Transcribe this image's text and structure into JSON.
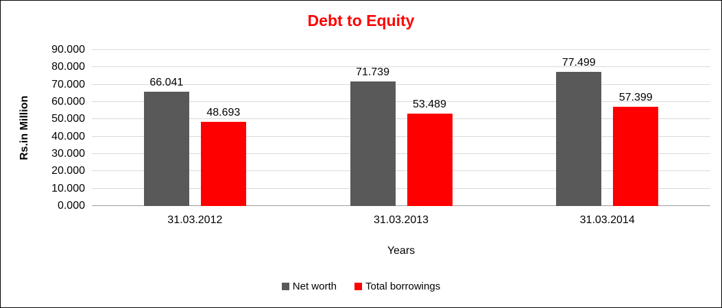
{
  "chart_data": {
    "type": "bar",
    "title": "Debt to Equity",
    "title_color": "#FF0000",
    "xlabel": "Years",
    "ylabel": "Rs.in Million",
    "categories": [
      "31.03.2012",
      "31.03.2013",
      "31.03.2014"
    ],
    "series": [
      {
        "name": "Net worth",
        "color": "#595959",
        "values": [
          66.041,
          71.739,
          77.499
        ],
        "labels": [
          "66.041",
          "71.739",
          "77.499"
        ]
      },
      {
        "name": "Total borrowings",
        "color": "#FF0000",
        "values": [
          48.693,
          53.489,
          57.399
        ],
        "labels": [
          "48.693",
          "53.489",
          "57.399"
        ]
      }
    ],
    "ylim": [
      0,
      90
    ],
    "ytick_step": 10,
    "ytick_labels": [
      "0.000",
      "10.000",
      "20.000",
      "30.000",
      "40.000",
      "50.000",
      "60.000",
      "70.000",
      "80.000",
      "90.000"
    ],
    "grid": true,
    "legend_position": "bottom"
  }
}
